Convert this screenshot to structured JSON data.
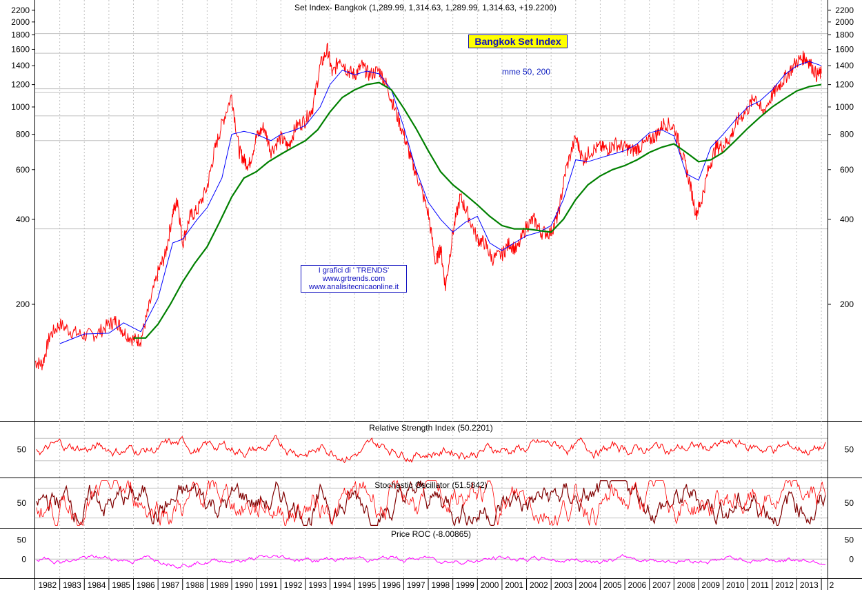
{
  "title": "Set Index- Bangkok (1,289.99, 1,314.63, 1,289.99, 1,314.63, +19.2200)",
  "label_box": "Bangkok Set Index",
  "ma_label": "mme 50, 200",
  "credits": [
    "I grafici di ' TRENDS'",
    "www.grtrends.com",
    "www.analisitecnicaonline.it"
  ],
  "colors": {
    "price": "#ff0000",
    "ma50": "#0000ff",
    "ma200": "#008000",
    "rsi": "#ff0000",
    "stoch_k": "#ff0000",
    "stoch_d": "#800000",
    "roc": "#ff00ff",
    "grid": "#c0c0c0",
    "box_fill": "#ffff00"
  },
  "chart_data": [
    {
      "type": "line",
      "panel": "price",
      "scale": "log",
      "ylim": [
        100,
        2200
      ],
      "yticks": [
        200,
        400,
        600,
        800,
        1000,
        1200,
        1400,
        1600,
        1800,
        2000,
        2200
      ],
      "x_labels": [
        "1982",
        "1983",
        "1984",
        "1985",
        "1986",
        "1987",
        "1988",
        "1989",
        "1990",
        "1991",
        "1992",
        "1993",
        "1994",
        "1995",
        "1996",
        "1997",
        "1998",
        "1999",
        "2000",
        "2001",
        "2002",
        "2003",
        "2004",
        "2005",
        "2006",
        "2007",
        "2008",
        "2009",
        "2010",
        "2011",
        "2012",
        "2013",
        "2"
      ],
      "series": [
        {
          "name": "price",
          "x": [
            1982.0,
            1982.3,
            1982.6,
            1983.0,
            1983.5,
            1984.0,
            1984.5,
            1985.0,
            1985.3,
            1985.6,
            1986.0,
            1986.3,
            1986.6,
            1987.0,
            1987.3,
            1987.6,
            1987.8,
            1988.0,
            1988.3,
            1988.6,
            1989.0,
            1989.3,
            1989.6,
            1990.0,
            1990.3,
            1990.5,
            1990.7,
            1991.0,
            1991.3,
            1991.6,
            1992.0,
            1992.3,
            1992.6,
            1993.0,
            1993.3,
            1993.6,
            1993.9,
            1994.1,
            1994.4,
            1994.7,
            1995.0,
            1995.3,
            1995.6,
            1996.0,
            1996.3,
            1996.6,
            1997.0,
            1997.3,
            1997.6,
            1998.0,
            1998.3,
            1998.5,
            1998.7,
            1999.0,
            1999.3,
            1999.6,
            2000.0,
            2000.3,
            2000.6,
            2001.0,
            2001.3,
            2001.6,
            2002.0,
            2002.3,
            2002.6,
            2003.0,
            2003.3,
            2003.6,
            2004.0,
            2004.3,
            2004.6,
            2005.0,
            2005.3,
            2005.6,
            2006.0,
            2006.3,
            2006.6,
            2007.0,
            2007.3,
            2007.6,
            2008.0,
            2008.3,
            2008.6,
            2008.9,
            2009.1,
            2009.4,
            2009.7,
            2010.0,
            2010.3,
            2010.6,
            2011.0,
            2011.3,
            2011.6,
            2012.0,
            2012.3,
            2012.6,
            2013.0,
            2013.3,
            2013.5,
            2013.8,
            2014.0
          ],
          "y": [
            125,
            123,
            155,
            170,
            160,
            155,
            157,
            170,
            175,
            160,
            150,
            150,
            190,
            260,
            300,
            420,
            470,
            330,
            410,
            430,
            520,
            700,
            870,
            1100,
            700,
            650,
            620,
            780,
            850,
            700,
            780,
            720,
            850,
            900,
            1000,
            1400,
            1600,
            1300,
            1500,
            1350,
            1300,
            1400,
            1300,
            1350,
            1200,
            1000,
            800,
            650,
            550,
            420,
            280,
            320,
            230,
            360,
            480,
            420,
            340,
            330,
            290,
            300,
            330,
            310,
            380,
            400,
            360,
            360,
            420,
            600,
            780,
            650,
            700,
            720,
            710,
            740,
            720,
            700,
            720,
            760,
            800,
            880,
            850,
            700,
            560,
            420,
            460,
            600,
            720,
            730,
            780,
            900,
            980,
            1100,
            950,
            1100,
            1200,
            1300,
            1450,
            1500,
            1450,
            1300,
            1314.63
          ]
        },
        {
          "name": "mme 50",
          "x": [
            1983.0,
            1984.0,
            1985.0,
            1985.6,
            1986.3,
            1987.0,
            1987.6,
            1988.0,
            1988.6,
            1989.0,
            1989.6,
            1990.0,
            1990.5,
            1991.0,
            1991.6,
            1992.0,
            1992.6,
            1993.0,
            1993.6,
            1994.0,
            1994.5,
            1995.0,
            1995.5,
            1996.0,
            1996.5,
            1997.0,
            1997.5,
            1998.0,
            1998.5,
            1999.0,
            1999.5,
            2000.0,
            2000.5,
            2001.0,
            2001.5,
            2002.0,
            2002.5,
            2003.0,
            2003.5,
            2004.0,
            2004.5,
            2005.0,
            2005.5,
            2006.0,
            2006.5,
            2007.0,
            2007.5,
            2008.0,
            2008.5,
            2009.0,
            2009.5,
            2010.0,
            2010.5,
            2011.0,
            2011.5,
            2012.0,
            2012.5,
            2013.0,
            2013.5,
            2014.0
          ],
          "y": [
            145,
            157,
            158,
            172,
            160,
            210,
            330,
            340,
            400,
            440,
            560,
            800,
            820,
            800,
            760,
            800,
            830,
            860,
            1000,
            1200,
            1350,
            1300,
            1340,
            1310,
            1150,
            850,
            600,
            460,
            400,
            360,
            390,
            410,
            330,
            310,
            330,
            350,
            360,
            380,
            470,
            650,
            640,
            660,
            680,
            700,
            740,
            810,
            830,
            790,
            580,
            550,
            720,
            800,
            900,
            1000,
            1050,
            1150,
            1300,
            1400,
            1450,
            1400
          ]
        },
        {
          "name": "mme 200",
          "x": [
            1986.0,
            1986.5,
            1987.0,
            1987.5,
            1988.0,
            1988.5,
            1989.0,
            1989.5,
            1990.0,
            1990.5,
            1991.0,
            1991.5,
            1992.0,
            1992.5,
            1993.0,
            1993.5,
            1994.0,
            1994.5,
            1995.0,
            1995.5,
            1996.0,
            1996.5,
            1997.0,
            1997.5,
            1998.0,
            1998.5,
            1999.0,
            1999.5,
            2000.0,
            2000.5,
            2001.0,
            2001.5,
            2002.0,
            2002.5,
            2003.0,
            2003.5,
            2004.0,
            2004.5,
            2005.0,
            2005.5,
            2006.0,
            2006.5,
            2007.0,
            2007.5,
            2008.0,
            2008.5,
            2009.0,
            2009.5,
            2010.0,
            2010.5,
            2011.0,
            2011.5,
            2012.0,
            2012.5,
            2013.0,
            2013.5,
            2014.0
          ],
          "y": [
            152,
            152,
            170,
            200,
            240,
            280,
            320,
            390,
            480,
            560,
            590,
            640,
            680,
            720,
            760,
            830,
            960,
            1080,
            1150,
            1200,
            1220,
            1150,
            990,
            840,
            700,
            590,
            530,
            490,
            450,
            410,
            380,
            370,
            370,
            365,
            360,
            400,
            470,
            530,
            570,
            600,
            620,
            650,
            690,
            720,
            740,
            690,
            640,
            650,
            690,
            760,
            840,
            920,
            1000,
            1070,
            1140,
            1180,
            1200
          ]
        }
      ]
    },
    {
      "type": "line",
      "panel": "rsi",
      "title": "Relative Strength Index (50.2201)",
      "ylim": [
        0,
        100
      ],
      "yticks": [
        50
      ],
      "series": [
        {
          "name": "Relative Strength Index",
          "values": [
            50
          ]
        }
      ]
    },
    {
      "type": "line",
      "panel": "stochastic",
      "title": "Stochastic Oscillator (51.5842)",
      "ylim": [
        0,
        100
      ],
      "yticks": [
        50
      ],
      "series": [
        {
          "name": "Stochastic Oscillator",
          "values": [
            51.5842
          ]
        }
      ]
    },
    {
      "type": "line",
      "panel": "roc",
      "title": "Price ROC (-8.00865)",
      "ylim": [
        -50,
        80
      ],
      "yticks": [
        50,
        0
      ],
      "series": [
        {
          "name": "Price ROC",
          "values": [
            -8.00865
          ]
        }
      ]
    }
  ]
}
